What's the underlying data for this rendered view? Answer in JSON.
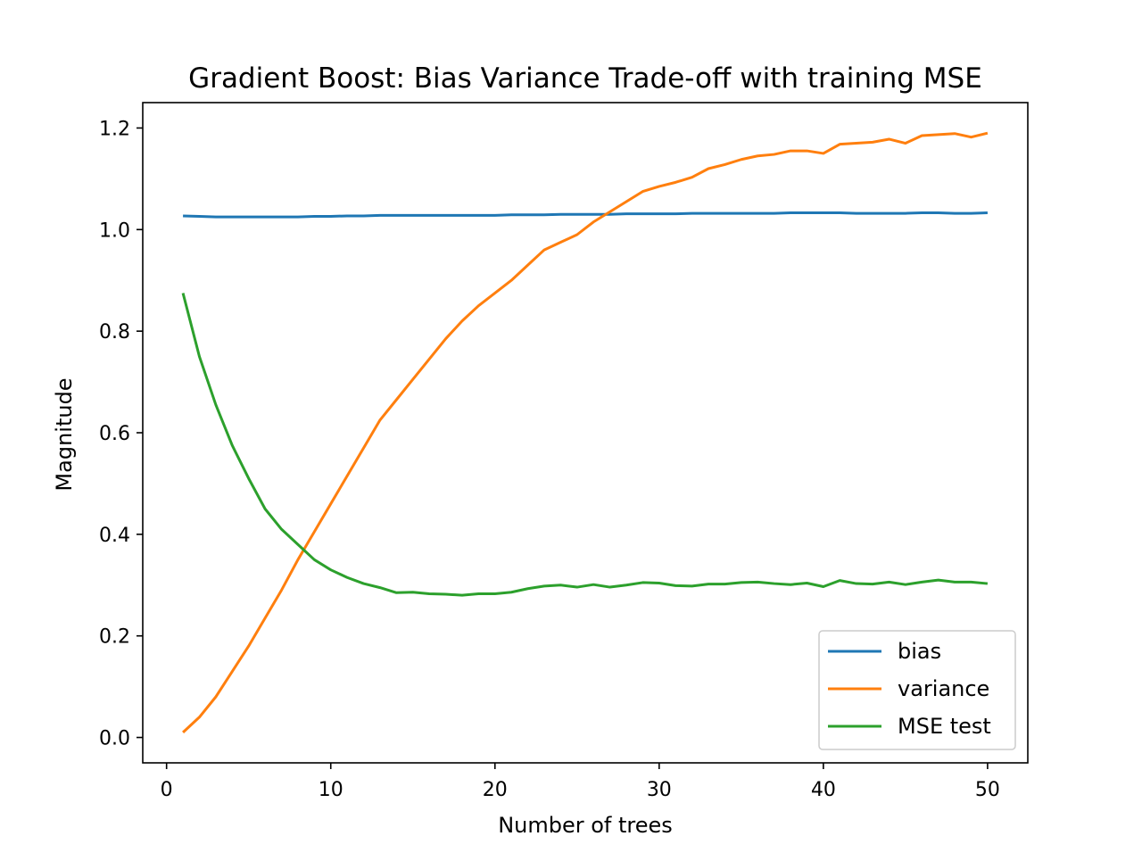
{
  "chart_data": {
    "type": "line",
    "title": "Gradient Boost: Bias Variance Trade-off with training MSE",
    "xlabel": "Number of trees",
    "ylabel": "Magnitude",
    "xlim": [
      -1.45,
      52.45
    ],
    "ylim": [
      -0.05,
      1.25
    ],
    "xticks": [
      0,
      10,
      20,
      30,
      40,
      50
    ],
    "xtick_labels": [
      "0",
      "10",
      "20",
      "30",
      "40",
      "50"
    ],
    "yticks": [
      0.0,
      0.2,
      0.4,
      0.6,
      0.8,
      1.0,
      1.2
    ],
    "ytick_labels": [
      "0.0",
      "0.2",
      "0.4",
      "0.6",
      "0.8",
      "1.0",
      "1.2"
    ],
    "grid": false,
    "legend_position": "lower-right",
    "x": [
      1,
      2,
      3,
      4,
      5,
      6,
      7,
      8,
      9,
      10,
      11,
      12,
      13,
      14,
      15,
      16,
      17,
      18,
      19,
      20,
      21,
      22,
      23,
      24,
      25,
      26,
      27,
      28,
      29,
      30,
      31,
      32,
      33,
      34,
      35,
      36,
      37,
      38,
      39,
      40,
      41,
      42,
      43,
      44,
      45,
      46,
      47,
      48,
      49,
      50
    ],
    "series": [
      {
        "name": "bias",
        "color": "#1f77b4",
        "values": [
          1.027,
          1.026,
          1.025,
          1.025,
          1.025,
          1.025,
          1.025,
          1.025,
          1.026,
          1.026,
          1.027,
          1.027,
          1.028,
          1.028,
          1.028,
          1.028,
          1.028,
          1.028,
          1.028,
          1.028,
          1.029,
          1.029,
          1.029,
          1.03,
          1.03,
          1.03,
          1.03,
          1.031,
          1.031,
          1.031,
          1.031,
          1.032,
          1.032,
          1.032,
          1.032,
          1.032,
          1.032,
          1.033,
          1.033,
          1.033,
          1.033,
          1.032,
          1.032,
          1.032,
          1.032,
          1.033,
          1.033,
          1.032,
          1.032,
          1.033
        ]
      },
      {
        "name": "variance",
        "color": "#ff7f0e",
        "values": [
          0.01,
          0.04,
          0.08,
          0.13,
          0.18,
          0.235,
          0.29,
          0.35,
          0.405,
          0.46,
          0.515,
          0.57,
          0.625,
          0.665,
          0.705,
          0.745,
          0.785,
          0.82,
          0.85,
          0.875,
          0.9,
          0.93,
          0.96,
          0.975,
          0.99,
          1.015,
          1.035,
          1.055,
          1.075,
          1.085,
          1.093,
          1.103,
          1.12,
          1.128,
          1.138,
          1.145,
          1.148,
          1.155,
          1.155,
          1.15,
          1.168,
          1.17,
          1.172,
          1.178,
          1.17,
          1.185,
          1.187,
          1.189,
          1.182,
          1.19
        ]
      },
      {
        "name": "MSE test",
        "color": "#2ca02c",
        "values": [
          0.875,
          0.75,
          0.655,
          0.575,
          0.51,
          0.45,
          0.41,
          0.38,
          0.35,
          0.33,
          0.315,
          0.303,
          0.295,
          0.285,
          0.286,
          0.283,
          0.282,
          0.28,
          0.283,
          0.283,
          0.286,
          0.293,
          0.298,
          0.3,
          0.296,
          0.301,
          0.296,
          0.3,
          0.305,
          0.304,
          0.299,
          0.298,
          0.302,
          0.302,
          0.305,
          0.306,
          0.303,
          0.301,
          0.304,
          0.297,
          0.309,
          0.303,
          0.302,
          0.306,
          0.301,
          0.306,
          0.31,
          0.306,
          0.306,
          0.303
        ]
      }
    ]
  }
}
